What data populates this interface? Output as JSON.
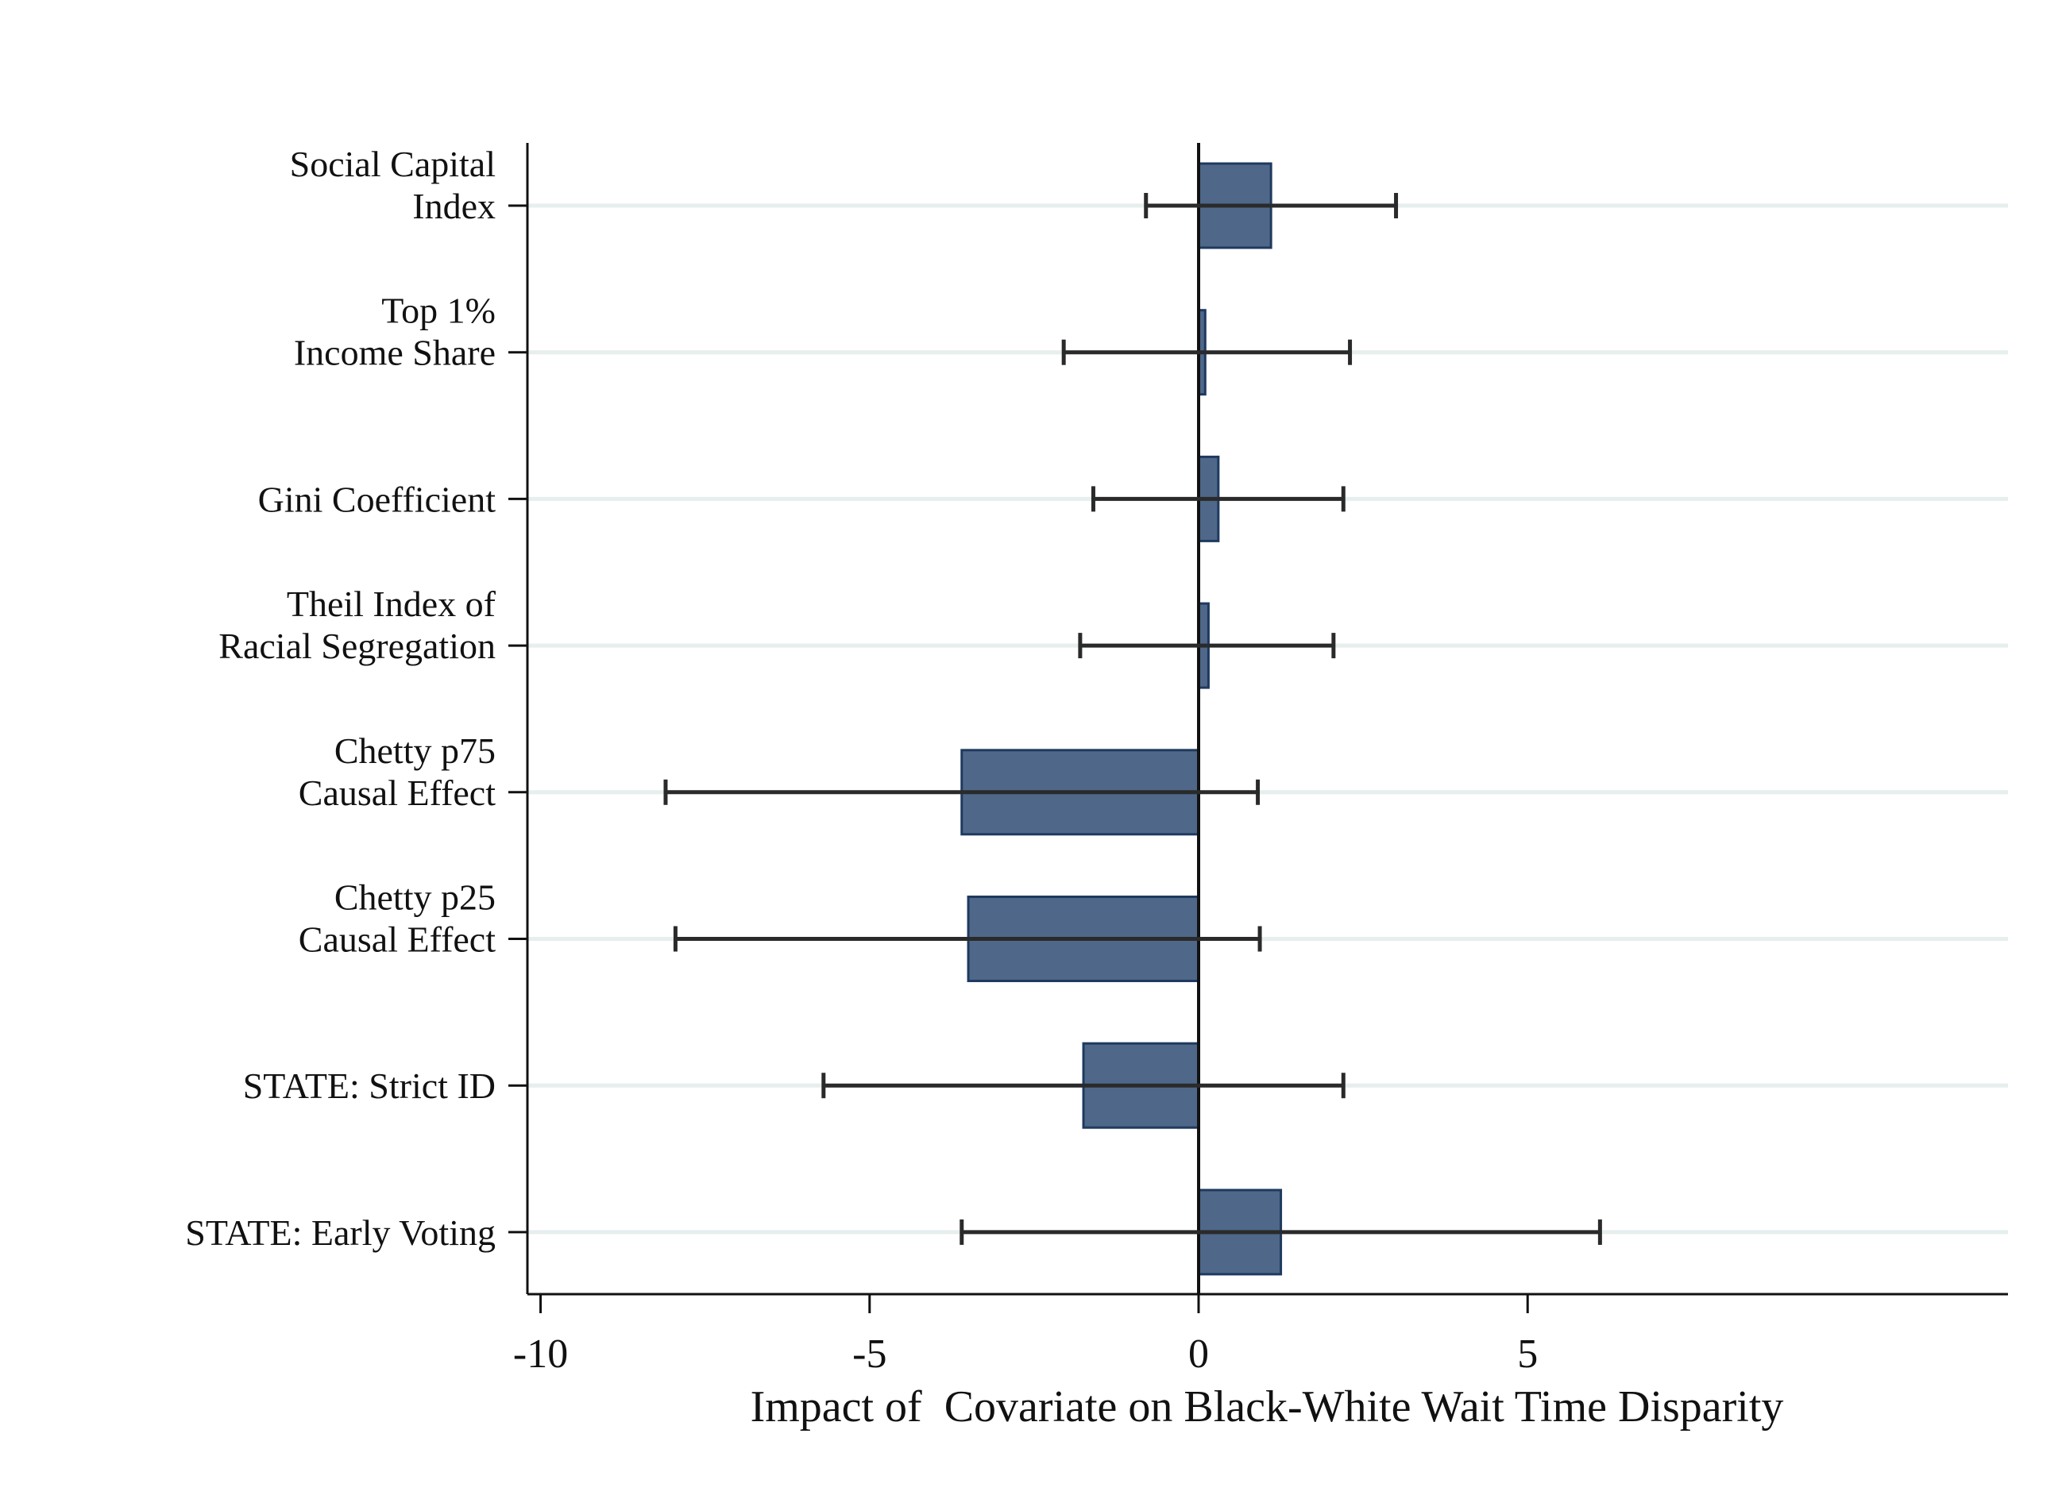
{
  "chart_data": {
    "type": "bar",
    "orientation": "horizontal",
    "xlabel": "Impact of  Covariate on Black-White Wait Time Disparity",
    "ylabel": "",
    "xlim": [
      -10.2,
      12.3
    ],
    "xticks": [
      -10,
      -5,
      0,
      5
    ],
    "xtick_labels": [
      "-10",
      "-5",
      "0",
      "5"
    ],
    "grid": "horizontal",
    "colors": {
      "bar_fill": "#4f6889",
      "bar_edge": "#1f3a5f",
      "error_bar": "#2a2a2a",
      "grid": "#e6eeee",
      "axis": "#111111"
    },
    "categories": [
      {
        "lines": [
          "Social Capital",
          "Index"
        ],
        "value": 1.1,
        "ci_low": -0.8,
        "ci_high": 3.0
      },
      {
        "lines": [
          "Top 1%",
          "Income Share"
        ],
        "value": 0.1,
        "ci_low": -2.05,
        "ci_high": 2.3
      },
      {
        "lines": [
          "Gini Coefficient"
        ],
        "value": 0.3,
        "ci_low": -1.6,
        "ci_high": 2.2
      },
      {
        "lines": [
          "Theil Index of",
          "Racial Segregation"
        ],
        "value": 0.15,
        "ci_low": -1.8,
        "ci_high": 2.05
      },
      {
        "lines": [
          "Chetty p75",
          "Causal Effect"
        ],
        "value": -3.6,
        "ci_low": -8.1,
        "ci_high": 0.9
      },
      {
        "lines": [
          "Chetty p25",
          "Causal Effect"
        ],
        "value": -3.5,
        "ci_low": -7.95,
        "ci_high": 0.93
      },
      {
        "lines": [
          "STATE: Strict ID"
        ],
        "value": -1.75,
        "ci_low": -5.7,
        "ci_high": 2.2
      },
      {
        "lines": [
          "STATE: Early Voting"
        ],
        "value": 1.25,
        "ci_low": -3.6,
        "ci_high": 6.1
      }
    ]
  }
}
